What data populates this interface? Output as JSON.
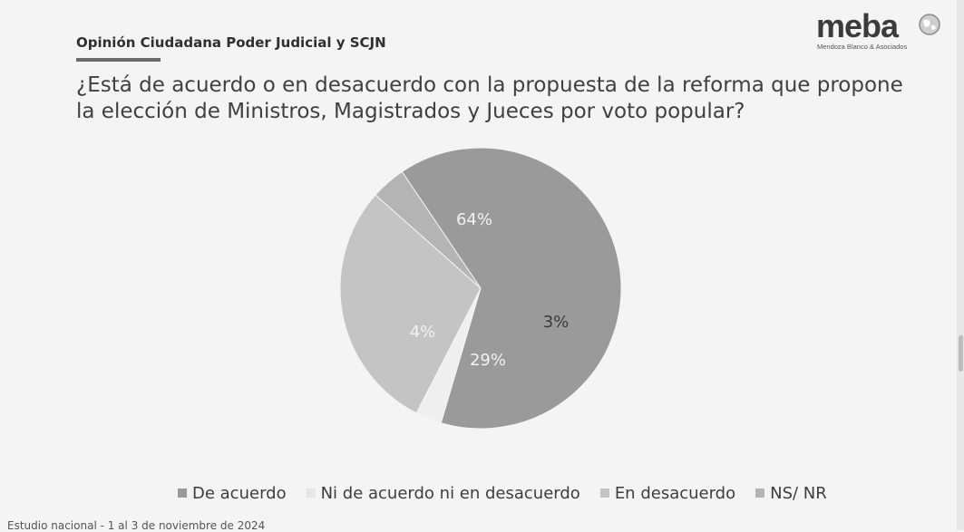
{
  "header": {
    "title": "Opinión Ciudadana Poder Judicial y SCJN"
  },
  "question": "¿Está de acuerdo o en desacuerdo con la propuesta de la reforma que propone la elección de Ministros, Magistrados y Jueces por voto popular?",
  "logo": {
    "word": "meba",
    "subtitle": "Mendoza Blanco & Asociados",
    "icon": "globe-icon"
  },
  "footer": {
    "note": "Estudio nacional - 1 al 3 de noviembre de 2024"
  },
  "chart_data": {
    "type": "pie",
    "title": "",
    "slices": [
      {
        "label": "De acuerdo",
        "value": 64,
        "display": "64%",
        "color": "#9a9a9a",
        "label_color": "#f2f2f2"
      },
      {
        "label": "Ni de acuerdo ni en desacuerdo",
        "value": 3,
        "display": "3%",
        "color": "#efefef",
        "label_color": "#3a3a3a"
      },
      {
        "label": "En desacuerdo",
        "value": 29,
        "display": "29%",
        "color": "#c4c4c4",
        "label_color": "#f2f2f2"
      },
      {
        "label": "NS/ NR",
        "value": 4,
        "display": "4%",
        "color": "#b4b4b4",
        "label_color": "#f2f2f2"
      }
    ],
    "legend_position": "bottom"
  }
}
